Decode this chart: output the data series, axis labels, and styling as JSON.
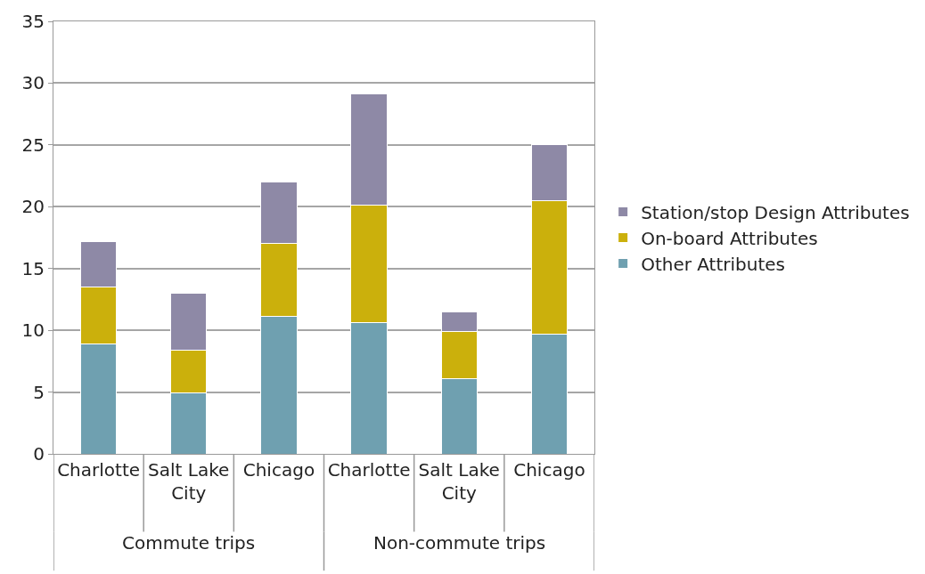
{
  "chart_data": {
    "type": "bar",
    "stacked": true,
    "categories": [
      "Charlotte",
      "Salt Lake City",
      "Chicago",
      "Charlotte",
      "Salt Lake City",
      "Chicago"
    ],
    "annotations": [
      "Commute trips",
      "Non-commute trips"
    ],
    "series": [
      {
        "name": "Other Attributes",
        "color": "#6fa0b0",
        "values": [
          8.9,
          4.9,
          11.1,
          10.6,
          6.1,
          9.7
        ]
      },
      {
        "name": "On-board Attributes",
        "color": "#cbb00c",
        "values": [
          4.6,
          3.5,
          5.9,
          9.5,
          3.8,
          10.8
        ]
      },
      {
        "name": "Station/stop Design Attributes",
        "color": "#8e89a6",
        "values": [
          3.7,
          4.6,
          5.0,
          9.0,
          1.6,
          4.5
        ]
      }
    ],
    "ylim": [
      0,
      35
    ],
    "yticks": [
      0,
      5,
      10,
      15,
      20,
      25,
      30,
      35
    ],
    "grid": "y",
    "legend": "right"
  }
}
